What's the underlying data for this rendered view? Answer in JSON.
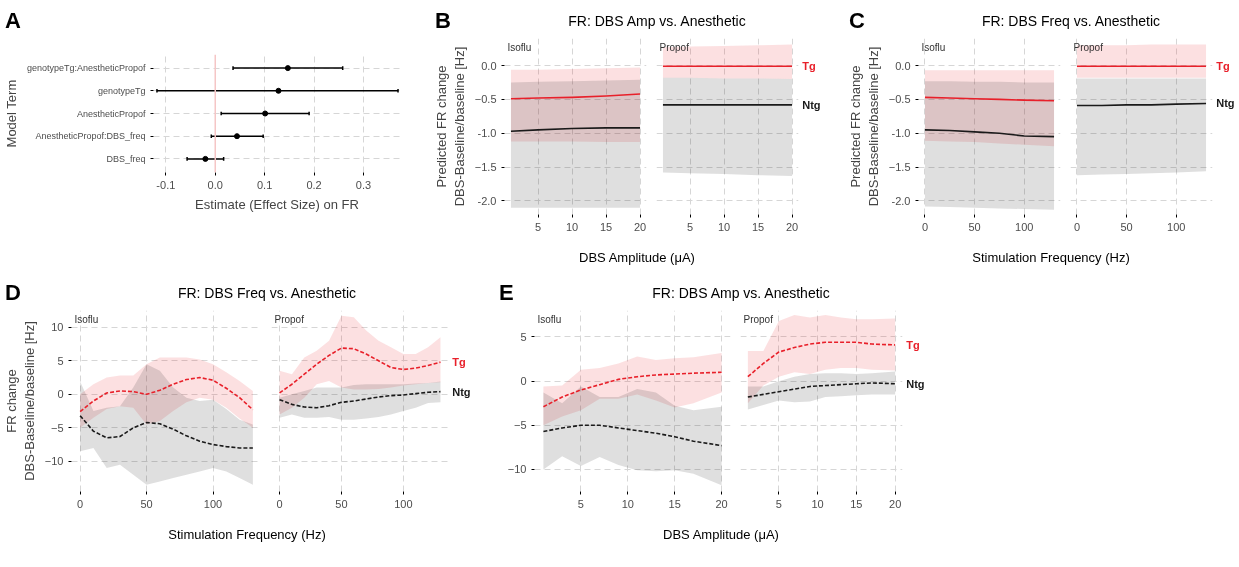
{
  "chart_data": [
    {
      "type": "scatter",
      "orientation": "horizontal",
      "annotations": [
        "A"
      ],
      "xlabel": "Estimate (Effect Size) on FR",
      "ylabel": "Model Term",
      "categories": [
        "genotypeTg:AnestheticPropof",
        "genotypeTg",
        "AnestheticPropof",
        "AnestheticPropof:DBS_freq",
        "DBS_freq"
      ],
      "xlim": [
        -0.125,
        0.375
      ],
      "xticks": [
        {
          "value": -0.1,
          "label": "-0.1"
        },
        {
          "value": 0,
          "label": "0.0"
        },
        0.1,
        0.2,
        0.3
      ],
      "grid": true,
      "marker": "circle",
      "ref_lines": [
        {
          "axis": "x",
          "value": 0,
          "color": "#f5c6c6"
        }
      ],
      "color": "#000000",
      "values": [
        0.147,
        0.128,
        0.101,
        0.044,
        -0.02
      ],
      "errors": [
        [
          0.036,
          0.258
        ],
        [
          -0.118,
          0.37
        ],
        [
          0.012,
          0.19
        ],
        [
          -0.008,
          0.097
        ],
        [
          -0.057,
          0.017
        ]
      ]
    },
    {
      "type": "line",
      "annotations": [
        "B"
      ],
      "title": "FR: DBS Amp vs. Anesthetic",
      "subtitle": "Isoflu",
      "xlabel": "DBS Amplitude (μA)",
      "ylabel": "Predicted FR change\nDBS-Baseline/baseline [Hz]",
      "x": [
        1,
        5,
        10,
        15,
        20
      ],
      "xlim": [
        0.05,
        20.95
      ],
      "xticks": [
        5,
        10,
        15,
        20
      ],
      "ylim": [
        -2.2,
        0.4
      ],
      "yticks": [
        {
          "value": -2,
          "label": "-2.0"
        },
        -1.5,
        {
          "value": -1,
          "label": "-1.0"
        },
        -0.5,
        {
          "value": 0,
          "label": "0.0"
        }
      ],
      "grid": true,
      "line_style": "solid",
      "series": [
        {
          "color": "#e8202a",
          "values": [
            -0.49,
            -0.48,
            -0.47,
            -0.45,
            -0.42
          ],
          "upper": [
            -0.06,
            -0.06,
            -0.05,
            -0.04,
            -0.03
          ],
          "lower": [
            -1.12,
            -1.12,
            -1.12,
            -1.13,
            -1.13
          ]
        },
        {
          "color": "#1a1a1a",
          "values": [
            -0.97,
            -0.95,
            -0.93,
            -0.92,
            -0.92
          ],
          "upper": [
            -0.25,
            -0.24,
            -0.23,
            -0.22,
            -0.21
          ],
          "lower": [
            -2.1,
            -2.1,
            -2.1,
            -2.1,
            -2.1
          ]
        }
      ]
    },
    {
      "type": "line",
      "subtitle": "Propof",
      "tick_labels": "x",
      "x": [
        1,
        5,
        10,
        15,
        20
      ],
      "xlim": [
        0.05,
        20.95
      ],
      "xticks": [
        5,
        10,
        15,
        20
      ],
      "ylim": [
        -2.2,
        0.4
      ],
      "yticks": [
        -2,
        -1.5,
        -1,
        -0.5,
        0
      ],
      "grid": true,
      "line_style": "solid",
      "series": [
        {
          "name": "Tg",
          "color": "#e8202a",
          "values": [
            -0.01,
            -0.01,
            -0.01,
            -0.01,
            -0.01
          ],
          "upper": [
            0.27,
            0.28,
            0.29,
            0.3,
            0.31
          ],
          "lower": [
            -0.18,
            -0.18,
            -0.19,
            -0.19,
            -0.2
          ]
        },
        {
          "name": "Ntg",
          "color": "#1a1a1a",
          "values": [
            -0.58,
            -0.58,
            -0.58,
            -0.58,
            -0.58
          ],
          "upper": [
            -0.18,
            -0.18,
            -0.19,
            -0.19,
            -0.2
          ],
          "lower": [
            -1.58,
            -1.59,
            -1.6,
            -1.62,
            -1.63
          ]
        }
      ]
    },
    {
      "type": "line",
      "annotations": [
        "C"
      ],
      "title": "FR: DBS Freq vs. Anesthetic",
      "subtitle": "Isoflu",
      "xlabel": "Stimulation Frequency (Hz)",
      "ylabel": "Predicted FR change\nDBS-Baseline/baseline [Hz]",
      "x": [
        0,
        25,
        50,
        75,
        100,
        130
      ],
      "xlim": [
        -6.5,
        136.5
      ],
      "xticks": [
        0,
        50,
        100
      ],
      "ylim": [
        -2.2,
        0.4
      ],
      "yticks": [
        {
          "value": -2,
          "label": "-2.0"
        },
        -1.5,
        {
          "value": -1,
          "label": "-1.0"
        },
        -0.5,
        {
          "value": 0,
          "label": "0.0"
        }
      ],
      "grid": true,
      "line_style": "solid",
      "series": [
        {
          "color": "#e8202a",
          "values": [
            -0.47,
            -0.48,
            -0.49,
            -0.5,
            -0.51,
            -0.52
          ],
          "upper": [
            -0.07,
            -0.07,
            -0.07,
            -0.07,
            -0.07,
            -0.07
          ],
          "lower": [
            -1.11,
            -1.12,
            -1.13,
            -1.15,
            -1.17,
            -1.19
          ]
        },
        {
          "color": "#1a1a1a",
          "values": [
            -0.95,
            -0.96,
            -0.98,
            -1.0,
            -1.04,
            -1.05
          ],
          "upper": [
            -0.23,
            -0.23,
            -0.24,
            -0.24,
            -0.25,
            -0.25
          ],
          "lower": [
            -2.08,
            -2.09,
            -2.1,
            -2.11,
            -2.12,
            -2.13
          ]
        }
      ]
    },
    {
      "type": "line",
      "subtitle": "Propof",
      "tick_labels": "x",
      "x": [
        0,
        25,
        50,
        75,
        100,
        130
      ],
      "xlim": [
        -6.5,
        136.5
      ],
      "xticks": [
        0,
        50,
        100
      ],
      "ylim": [
        -2.2,
        0.4
      ],
      "yticks": [
        -2,
        -1.5,
        -1,
        -0.5,
        0
      ],
      "grid": true,
      "line_style": "solid",
      "series": [
        {
          "name": "Tg",
          "color": "#e8202a",
          "values": [
            -0.01,
            -0.01,
            -0.01,
            -0.01,
            -0.01,
            -0.01
          ],
          "upper": [
            0.3,
            0.3,
            0.3,
            0.31,
            0.31,
            0.31
          ],
          "lower": [
            -0.18,
            -0.18,
            -0.18,
            -0.18,
            -0.18,
            -0.18
          ]
        },
        {
          "name": "Ntg",
          "color": "#1a1a1a",
          "values": [
            -0.59,
            -0.59,
            -0.58,
            -0.58,
            -0.57,
            -0.56
          ],
          "upper": [
            -0.19,
            -0.19,
            -0.19,
            -0.19,
            -0.19,
            -0.19
          ],
          "lower": [
            -1.62,
            -1.61,
            -1.6,
            -1.59,
            -1.58,
            -1.56
          ]
        }
      ]
    },
    {
      "type": "line",
      "annotations": [
        "D"
      ],
      "title": "FR: DBS Freq vs. Anesthetic",
      "subtitle": "Isoflu",
      "xlabel": "Stimulation Frequency (Hz)",
      "ylabel": "FR change\nDBS-Baseline/baseline [Hz]",
      "x": [
        0,
        10,
        20,
        30,
        40,
        50,
        60,
        70,
        80,
        90,
        100,
        110,
        120,
        130
      ],
      "xlim": [
        -6.5,
        136.5
      ],
      "xticks": [
        0,
        50,
        100
      ],
      "ylim": [
        -14.5,
        12.5
      ],
      "yticks": [
        -10,
        -5,
        0,
        5,
        10
      ],
      "grid": true,
      "line_style": "dashed",
      "series": [
        {
          "color": "#e8202a",
          "values": [
            -2.6,
            -1.0,
            0.2,
            0.5,
            0.4,
            0.0,
            0.6,
            1.5,
            2.2,
            2.5,
            2.1,
            0.9,
            -0.5,
            -2.3
          ],
          "upper": [
            0,
            1.5,
            2.5,
            2.8,
            2.8,
            4.5,
            5.5,
            5.5,
            5.5,
            5.2,
            4.5,
            3.3,
            2.0,
            0.5
          ],
          "lower": [
            -5,
            -3.5,
            -2.2,
            -1.8,
            -2.0,
            -4.5,
            -4.0,
            -2.5,
            -1.2,
            -0.5,
            -0.8,
            -2.0,
            -3.6,
            -5.0
          ]
        },
        {
          "color": "#1a1a1a",
          "values": [
            -3.2,
            -5.5,
            -6.5,
            -6.3,
            -5.0,
            -4.2,
            -4.4,
            -5.2,
            -6.2,
            -7.0,
            -7.5,
            -7.8,
            -8.0,
            -8.0
          ],
          "upper": [
            1.9,
            -2.5,
            -2,
            -1.8,
            1,
            4.5,
            3.5,
            1,
            -0.5,
            -1,
            -0.8,
            -2.2,
            -3.8,
            -4.5
          ],
          "lower": [
            -8.5,
            -8,
            -11,
            -10.5,
            -12,
            -13.5,
            -13,
            -12.5,
            -12,
            -11.5,
            -11,
            -11.5,
            -12.5,
            -13.5
          ]
        }
      ]
    },
    {
      "type": "line",
      "subtitle": "Propof",
      "tick_labels": "x",
      "x": [
        0,
        10,
        20,
        30,
        40,
        50,
        60,
        70,
        80,
        90,
        100,
        110,
        120,
        130
      ],
      "xlim": [
        -6.5,
        136.5
      ],
      "xticks": [
        0,
        50,
        100
      ],
      "ylim": [
        -14.5,
        12.5
      ],
      "yticks": [
        -10,
        -5,
        0,
        5,
        10
      ],
      "grid": true,
      "line_style": "dashed",
      "series": [
        {
          "name": "Tg",
          "color": "#e8202a",
          "values": [
            0.2,
            1.5,
            3,
            4.5,
            5.8,
            6.9,
            6.8,
            6,
            5,
            4,
            3.7,
            3.9,
            4.3,
            4.8
          ],
          "upper": [
            3.5,
            3,
            5.5,
            6.5,
            8,
            11.7,
            11.5,
            9.5,
            8,
            7,
            6,
            6,
            7,
            8.5
          ],
          "lower": [
            -3,
            -2,
            -0.5,
            1.5,
            2,
            1,
            0.7,
            0.7,
            0.8,
            1,
            1.3,
            1.5,
            1.7,
            1.8
          ]
        },
        {
          "name": "Ntg",
          "color": "#1a1a1a",
          "values": [
            -0.8,
            -1.5,
            -1.9,
            -2.0,
            -1.7,
            -1.2,
            -1.0,
            -0.7,
            -0.4,
            -0.2,
            -0.1,
            0.1,
            0.3,
            0.4
          ],
          "upper": [
            -0.5,
            0,
            0.5,
            1,
            1,
            1,
            1.4,
            1.5,
            1.5,
            1.5,
            1.5,
            1.6,
            1.7,
            1.9
          ],
          "lower": [
            -3.5,
            -3,
            -3.5,
            -3.5,
            -3.4,
            -3.8,
            -3.8,
            -3.6,
            -3.4,
            -3.0,
            -2.5,
            -2,
            -1.3,
            -1.2
          ]
        }
      ]
    },
    {
      "type": "line",
      "annotations": [
        "E"
      ],
      "title": "FR: DBS Amp vs. Anesthetic",
      "subtitle": "Isoflu",
      "xlabel": "DBS Amplitude (μA)",
      "x": [
        1,
        3,
        5,
        7,
        9,
        11,
        13,
        15,
        17,
        20
      ],
      "xlim": [
        0.05,
        20.95
      ],
      "xticks": [
        5,
        10,
        15,
        20
      ],
      "ylim": [
        -12.5,
        8
      ],
      "yticks": [
        -10,
        -5,
        0,
        5
      ],
      "grid": true,
      "line_style": "dashed",
      "series": [
        {
          "color": "#e8202a",
          "values": [
            -2.9,
            -1.8,
            -1.0,
            -0.4,
            0.2,
            0.5,
            0.7,
            0.8,
            0.9,
            1.0
          ],
          "upper": [
            -0.6,
            -0.5,
            1.3,
            1.5,
            2,
            2.8,
            2.4,
            2.6,
            2.7,
            3.2
          ],
          "lower": [
            -5,
            -4,
            -3.3,
            -2,
            -2,
            -1.5,
            -2.2,
            -3.0,
            -2.5,
            -1.3
          ]
        },
        {
          "color": "#1a1a1a",
          "values": [
            -5.7,
            -5.3,
            -5.0,
            -5.0,
            -5.3,
            -5.6,
            -5.9,
            -6.3,
            -6.8,
            -7.3
          ],
          "upper": [
            -1.3,
            -2.5,
            -0.6,
            -1.8,
            -1.8,
            -0.9,
            -1.3,
            -2.8,
            -3.3,
            -2.9
          ],
          "lower": [
            -10,
            -8.5,
            -9.6,
            -8.6,
            -9.5,
            -10.1,
            -10.2,
            -10.1,
            -10.5,
            -11.8
          ]
        }
      ]
    },
    {
      "type": "line",
      "subtitle": "Propof",
      "tick_labels": "x",
      "x": [
        1,
        3,
        5,
        7,
        9,
        11,
        13,
        15,
        17,
        20
      ],
      "xlim": [
        0.05,
        20.95
      ],
      "xticks": [
        5,
        10,
        15,
        20
      ],
      "ylim": [
        -12.5,
        8
      ],
      "yticks": [
        -10,
        -5,
        0,
        5
      ],
      "grid": true,
      "line_style": "dashed",
      "series": [
        {
          "name": "Tg",
          "color": "#e8202a",
          "values": [
            0.5,
            2.0,
            3.3,
            3.8,
            4.2,
            4.4,
            4.4,
            4.4,
            4.2,
            4.1
          ],
          "upper": [
            3.4,
            3.4,
            6.8,
            7.5,
            7.2,
            7.5,
            7.2,
            7.0,
            7.0,
            7.1
          ],
          "lower": [
            -2.5,
            -0.5,
            0.5,
            1,
            0.8,
            1.3,
            1.5,
            1.5,
            1.3,
            1.2
          ]
        },
        {
          "name": "Ntg",
          "color": "#1a1a1a",
          "values": [
            -1.8,
            -1.5,
            -1.2,
            -0.9,
            -0.6,
            -0.5,
            -0.4,
            -0.3,
            -0.2,
            -0.3
          ],
          "upper": [
            -0.6,
            -0.6,
            0,
            0.5,
            0.8,
            0.9,
            0.9,
            0.8,
            0.9,
            1.1
          ],
          "lower": [
            -3.2,
            -2.7,
            -2.2,
            -2.4,
            -2.3,
            -1.8,
            -1.7,
            -1.6,
            -1.5,
            -1.5
          ]
        }
      ]
    }
  ]
}
